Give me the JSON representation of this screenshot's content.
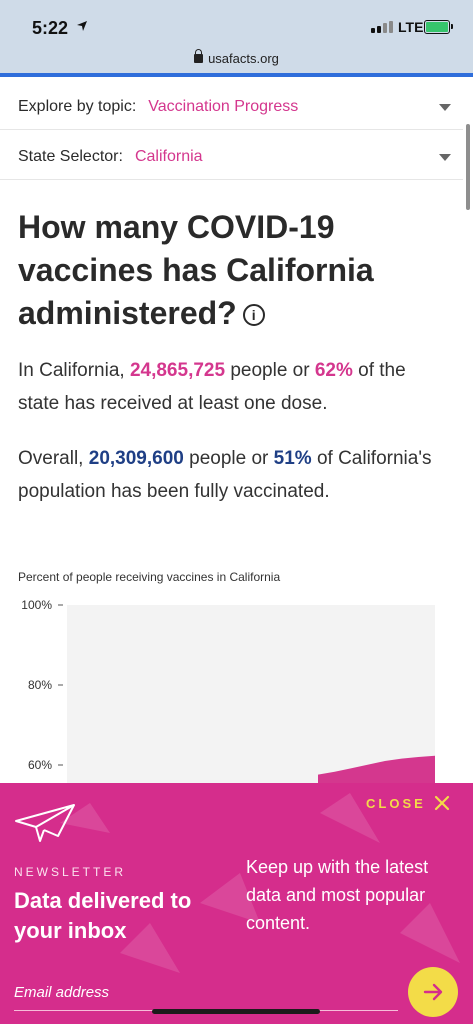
{
  "status_bar": {
    "time": "5:22",
    "network": "LTE"
  },
  "browser": {
    "url": "usafacts.org"
  },
  "topic_selector": {
    "label": "Explore by topic:",
    "value": "Vaccination Progress"
  },
  "state_selector": {
    "label": "State Selector:",
    "value": "California"
  },
  "headline": "How many COVID-19 vaccines has California administered?",
  "info_icon_glyph": "i",
  "summary_one": {
    "prefix": "In California,",
    "people": "24,865,725",
    "middle": "people or",
    "percent": "62%",
    "suffix": "of the state has received at least one dose."
  },
  "summary_full": {
    "prefix": "Overall,",
    "people": "20,309,600",
    "middle": "people or",
    "percent": "51%",
    "suffix": "of California's population has been fully vaccinated."
  },
  "chart_data": {
    "type": "area",
    "title": "Percent of people receiving vaccines in California",
    "y_ticks": [
      "100%",
      "80%",
      "60%"
    ],
    "ylim": [
      40,
      100
    ],
    "series": [
      {
        "values": [
          57.6,
          58.3,
          59.2,
          60.1,
          61.0,
          61.6,
          62.0,
          62.3
        ]
      }
    ],
    "colors": {
      "series": "#d4378e",
      "plot_bg": "#f3f3f3"
    }
  },
  "newsletter": {
    "eyebrow": "NEWSLETTER",
    "title": "Data delivered to your inbox",
    "description": "Keep up with the latest data and most popular content.",
    "close_label": "CLOSE",
    "email_placeholder": "Email address",
    "colors": {
      "background": "#d52d8c",
      "accent": "#f3dc48"
    }
  },
  "colors": {
    "pink": "#d4378e",
    "navy": "#1f3f85"
  }
}
